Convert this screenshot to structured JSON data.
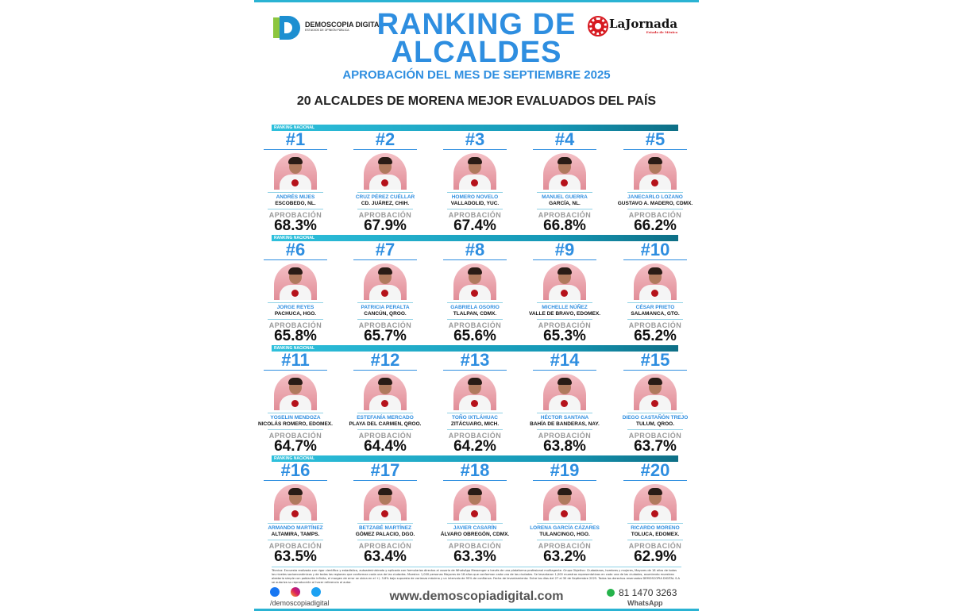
{
  "header": {
    "logo_left": "DEMOSCOPIA DIGITAL",
    "logo_left_tagline": "ESTUDIOS DE OPINIÓN PÚBLICA",
    "title_line1": "RANKING DE",
    "title_line2": "ALCALDES",
    "subtitle": "APROBACIÓN DEL MES DE SEPTIEMBRE 2025",
    "headline": "20 ALCALDES DE MORENA MEJOR EVALUADOS DEL PAÍS",
    "logo_right": "LaJornada",
    "logo_right_tagline": "Estado de México"
  },
  "row_label": "RANKING NACIONAL",
  "approval_label": "APROBACIÓN",
  "colors": {
    "accent": "#2e8ee0",
    "bar": "#1597b5",
    "photo_bg": "#e18d98"
  },
  "alcaldes": [
    {
      "rank": "#1",
      "name": "ANDRÉS MIJES",
      "city": "ESCOBEDO, NL.",
      "approval": "68.3%"
    },
    {
      "rank": "#2",
      "name": "CRUZ PÉREZ CUÉLLAR",
      "city": "CD. JUÁREZ, CHIH.",
      "approval": "67.9%"
    },
    {
      "rank": "#3",
      "name": "HOMERO NOVELO",
      "city": "VALLADOLID, YUC.",
      "approval": "67.4%"
    },
    {
      "rank": "#4",
      "name": "MANUEL GUERRA",
      "city": "GARCÍA, NL.",
      "approval": "66.8%"
    },
    {
      "rank": "#5",
      "name": "JANECARLO LOZANO",
      "city": "GUSTAVO A. MADERO, CDMX.",
      "approval": "66.2%"
    },
    {
      "rank": "#6",
      "name": "JORGE REYES",
      "city": "PACHUCA, HGO.",
      "approval": "65.8%"
    },
    {
      "rank": "#7",
      "name": "PATRICIA PERALTA",
      "city": "CANCÚN, QROO.",
      "approval": "65.7%"
    },
    {
      "rank": "#8",
      "name": "GABRIELA OSORIO",
      "city": "TLALPAN, CDMX.",
      "approval": "65.6%"
    },
    {
      "rank": "#9",
      "name": "MICHELLE NÚÑEZ",
      "city": "VALLE DE BRAVO, EDOMEX.",
      "approval": "65.3%"
    },
    {
      "rank": "#10",
      "name": "CÉSAR PRIETO",
      "city": "SALAMANCA, GTO.",
      "approval": "65.2%"
    },
    {
      "rank": "#11",
      "name": "YOSELIN MENDOZA",
      "city": "NICOLÁS ROMERO, EDOMEX.",
      "approval": "64.7%"
    },
    {
      "rank": "#12",
      "name": "ESTEFANÍA MERCADO",
      "city": "PLAYA DEL CARMEN, QROO.",
      "approval": "64.4%"
    },
    {
      "rank": "#13",
      "name": "TOÑO IXTLÁHUAC",
      "city": "ZITÁCUARO, MICH.",
      "approval": "64.2%"
    },
    {
      "rank": "#14",
      "name": "HÉCTOR SANTANA",
      "city": "BAHÍA DE BANDERAS, NAY.",
      "approval": "63.8%"
    },
    {
      "rank": "#15",
      "name": "DIEGO CASTAÑÓN TREJO",
      "city": "TULUM, QROO.",
      "approval": "63.7%"
    },
    {
      "rank": "#16",
      "name": "ARMANDO MARTÍNEZ",
      "city": "ALTAMIRA, TAMPS.",
      "approval": "63.5%"
    },
    {
      "rank": "#17",
      "name": "BETZABÉ MARTÍNEZ",
      "city": "GÓMEZ PALACIO, DGO.",
      "approval": "63.4%"
    },
    {
      "rank": "#18",
      "name": "JAVIER CASARÍN",
      "city": "ÁLVARO OBREGÓN, CDMX.",
      "approval": "63.3%"
    },
    {
      "rank": "#19",
      "name": "LORENA GARCÍA CÁZARES",
      "city": "TULANCINGO, HGO.",
      "approval": "63.2%"
    },
    {
      "rank": "#20",
      "name": "RICARDO MORENO",
      "city": "TOLUCA, EDOMEX.",
      "approval": "62.9%"
    }
  ],
  "footer": {
    "methodology": "Técnica: Encuesta realizada con rigor científico y estadístico, autoadministrada y aplicada con formularios directos al usuario de WhatsApp Messenger a través de una plataforma profesional multiagente. Grupo Objetivo: Ciudadanos, hombres y mujeres, Mayores de 18 años de todos los niveles socioeconómicos y de todas las regiones que conforman cada una de las ciudades. Muestra: 1,000 personas Mayores de 18 años que conforman cada una de las ciudades. Se levantaron 1,000 muestras representativas en cada una de las ciudades, asumiendo muestreo aleatorio simple con población infinita, el margen de error se ubica en el +/- 3.8% bajo supuesto de varianza máxima y un intervalo de 95% de confianza. Fecha de levantamiento: Entre los días del 27 al 30 de Septiembre 2025. Todos los derechos reservados DEMOSCOPIA DIGITAL S.A se autoriza su reproducción al hacer referencia al autor.",
    "social_handle": "/demoscopiadigital",
    "website": "www.demoscopiadigital.com",
    "phone": "81 1470 3263",
    "phone_label": "WhatsApp"
  }
}
